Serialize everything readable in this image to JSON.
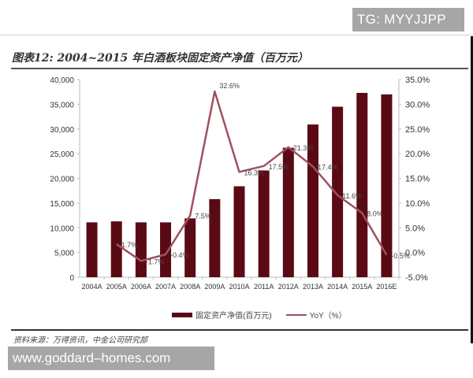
{
  "watermarks": {
    "top": "TG: MYYJJPP",
    "bottom": "www.goddard–homes.com"
  },
  "title": "图表12: 2004~2015 年白酒板块固定资产净值（百万元）",
  "source": "资料来源：万得资讯，中金公司研究部",
  "legend": {
    "bar": "固定资产净值(百万元)",
    "line": "YoY（%）"
  },
  "colors": {
    "bar": "#5a0a14",
    "line": "#a05060",
    "axis": "#bbbbbb"
  },
  "chart_data": {
    "type": "bar",
    "title": "图表12: 2004~2015 年白酒板块固定资产净值（百万元）",
    "categories": [
      "2004A",
      "2005A",
      "2006A",
      "2007A",
      "2008A",
      "2009A",
      "2010A",
      "2011A",
      "2012A",
      "2013A",
      "2014A",
      "2015A",
      "2016E"
    ],
    "series": [
      {
        "name": "固定资产净值(百万元)",
        "type": "bar",
        "axis": "left",
        "values": [
          11100,
          11300,
          11100,
          11100,
          11900,
          15800,
          18400,
          21600,
          26200,
          30900,
          34500,
          37300,
          37000
        ]
      },
      {
        "name": "YoY（%）",
        "type": "line",
        "axis": "right",
        "values": [
          null,
          1.7,
          -1.7,
          -0.4,
          7.5,
          32.6,
          16.3,
          17.5,
          21.3,
          17.4,
          11.6,
          8.0,
          -0.5
        ]
      }
    ],
    "data_labels": [
      "",
      "1.7%",
      "-1.7%",
      "-0.4%",
      "7.5%",
      "32.6%",
      "16.3%",
      "17.5%",
      "21.3%",
      "17.4%",
      "11.6%",
      "8.0%",
      "-0.5%"
    ],
    "y_left": {
      "ylim": [
        0,
        40000
      ],
      "ticks": [
        "0",
        "5,000",
        "10,000",
        "15,000",
        "20,000",
        "25,000",
        "30,000",
        "35,000",
        "40,000"
      ]
    },
    "y_right": {
      "ylim": [
        -5,
        35
      ],
      "ticks": [
        "-5.0%",
        "0.0%",
        "5.0%",
        "10.0%",
        "15.0%",
        "20.0%",
        "25.0%",
        "30.0%",
        "35.0%"
      ]
    },
    "xlabel": "",
    "ylabel": "",
    "grid": false,
    "legend_position": "bottom"
  }
}
